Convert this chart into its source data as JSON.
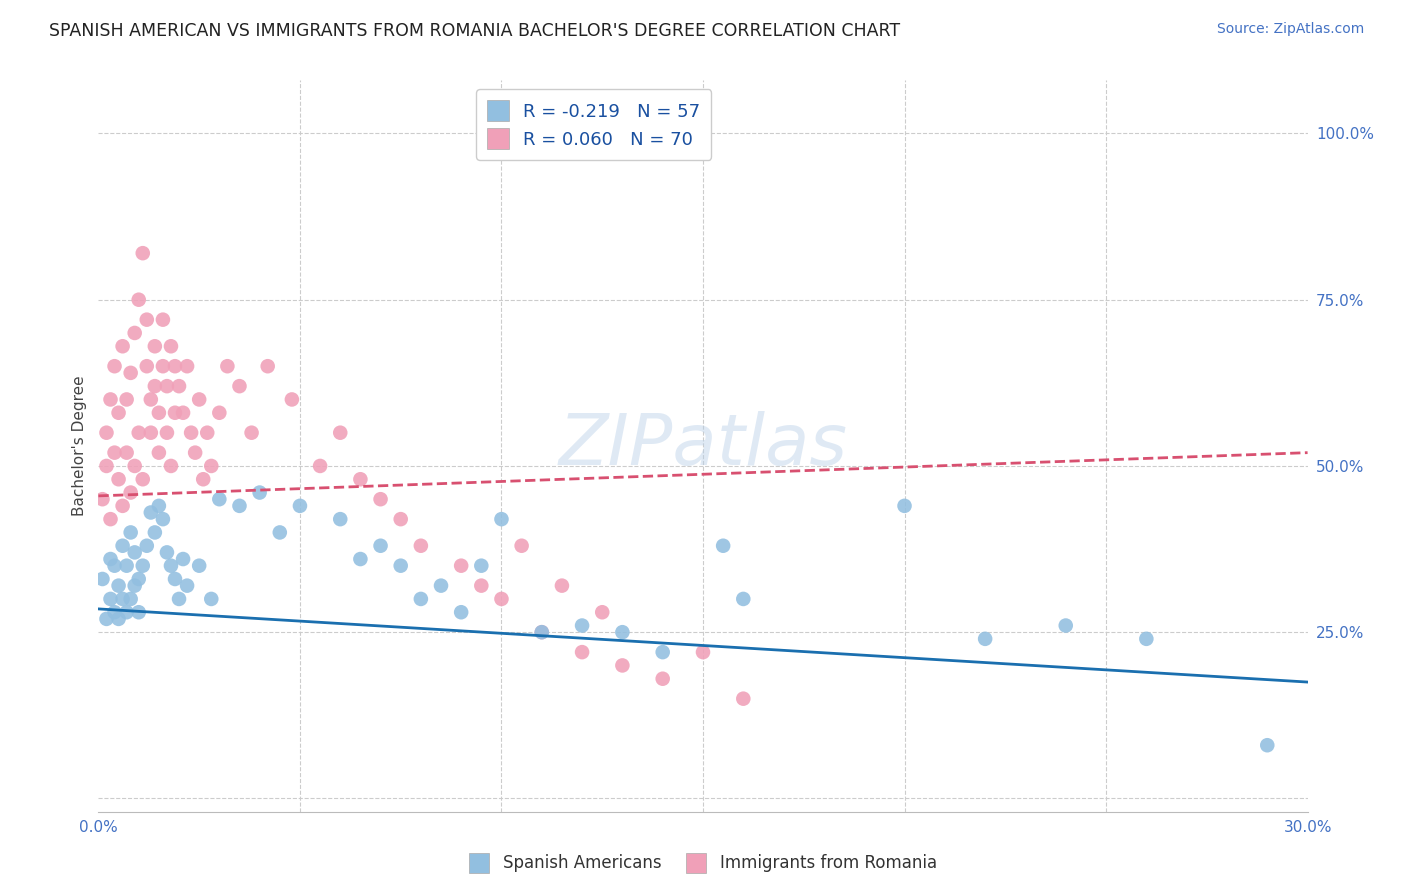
{
  "title": "SPANISH AMERICAN VS IMMIGRANTS FROM ROMANIA BACHELOR'S DEGREE CORRELATION CHART",
  "source": "Source: ZipAtlas.com",
  "ylabel": "Bachelor's Degree",
  "xlim": [
    0.0,
    0.3
  ],
  "ylim": [
    -0.02,
    1.08
  ],
  "legend_labels": [
    "Spanish Americans",
    "Immigrants from Romania"
  ],
  "r_blue": -0.219,
  "n_blue": 57,
  "r_pink": 0.06,
  "n_pink": 70,
  "color_blue": "#92bfe0",
  "color_pink": "#f0a0b8",
  "line_blue": "#1a6faf",
  "line_pink": "#d85070",
  "blue_x": [
    0.001,
    0.002,
    0.003,
    0.003,
    0.004,
    0.004,
    0.005,
    0.005,
    0.006,
    0.006,
    0.007,
    0.007,
    0.008,
    0.008,
    0.009,
    0.009,
    0.01,
    0.01,
    0.011,
    0.012,
    0.013,
    0.014,
    0.015,
    0.016,
    0.017,
    0.018,
    0.019,
    0.02,
    0.021,
    0.022,
    0.025,
    0.028,
    0.03,
    0.035,
    0.04,
    0.045,
    0.05,
    0.06,
    0.065,
    0.07,
    0.075,
    0.08,
    0.085,
    0.09,
    0.095,
    0.1,
    0.11,
    0.12,
    0.13,
    0.14,
    0.155,
    0.16,
    0.2,
    0.22,
    0.24,
    0.26,
    0.29
  ],
  "blue_y": [
    0.33,
    0.27,
    0.3,
    0.36,
    0.28,
    0.35,
    0.27,
    0.32,
    0.3,
    0.38,
    0.28,
    0.35,
    0.3,
    0.4,
    0.32,
    0.37,
    0.28,
    0.33,
    0.35,
    0.38,
    0.43,
    0.4,
    0.44,
    0.42,
    0.37,
    0.35,
    0.33,
    0.3,
    0.36,
    0.32,
    0.35,
    0.3,
    0.45,
    0.44,
    0.46,
    0.4,
    0.44,
    0.42,
    0.36,
    0.38,
    0.35,
    0.3,
    0.32,
    0.28,
    0.35,
    0.42,
    0.25,
    0.26,
    0.25,
    0.22,
    0.38,
    0.3,
    0.44,
    0.24,
    0.26,
    0.24,
    0.08
  ],
  "pink_x": [
    0.001,
    0.002,
    0.002,
    0.003,
    0.003,
    0.004,
    0.004,
    0.005,
    0.005,
    0.006,
    0.006,
    0.007,
    0.007,
    0.008,
    0.008,
    0.009,
    0.009,
    0.01,
    0.01,
    0.011,
    0.011,
    0.012,
    0.012,
    0.013,
    0.013,
    0.014,
    0.014,
    0.015,
    0.015,
    0.016,
    0.016,
    0.017,
    0.017,
    0.018,
    0.018,
    0.019,
    0.019,
    0.02,
    0.021,
    0.022,
    0.023,
    0.024,
    0.025,
    0.026,
    0.027,
    0.028,
    0.03,
    0.032,
    0.035,
    0.038,
    0.042,
    0.048,
    0.055,
    0.06,
    0.065,
    0.07,
    0.075,
    0.08,
    0.09,
    0.095,
    0.1,
    0.105,
    0.11,
    0.115,
    0.12,
    0.125,
    0.13,
    0.14,
    0.15,
    0.16
  ],
  "pink_y": [
    0.45,
    0.5,
    0.55,
    0.42,
    0.6,
    0.52,
    0.65,
    0.48,
    0.58,
    0.44,
    0.68,
    0.52,
    0.6,
    0.46,
    0.64,
    0.5,
    0.7,
    0.55,
    0.75,
    0.82,
    0.48,
    0.65,
    0.72,
    0.55,
    0.6,
    0.62,
    0.68,
    0.52,
    0.58,
    0.65,
    0.72,
    0.55,
    0.62,
    0.68,
    0.5,
    0.58,
    0.65,
    0.62,
    0.58,
    0.65,
    0.55,
    0.52,
    0.6,
    0.48,
    0.55,
    0.5,
    0.58,
    0.65,
    0.62,
    0.55,
    0.65,
    0.6,
    0.5,
    0.55,
    0.48,
    0.45,
    0.42,
    0.38,
    0.35,
    0.32,
    0.3,
    0.38,
    0.25,
    0.32,
    0.22,
    0.28,
    0.2,
    0.18,
    0.22,
    0.15
  ],
  "blue_line_x0": 0.0,
  "blue_line_y0": 0.285,
  "blue_line_x1": 0.3,
  "blue_line_y1": 0.175,
  "pink_line_x0": 0.0,
  "pink_line_y0": 0.455,
  "pink_line_x1": 0.3,
  "pink_line_y1": 0.52
}
